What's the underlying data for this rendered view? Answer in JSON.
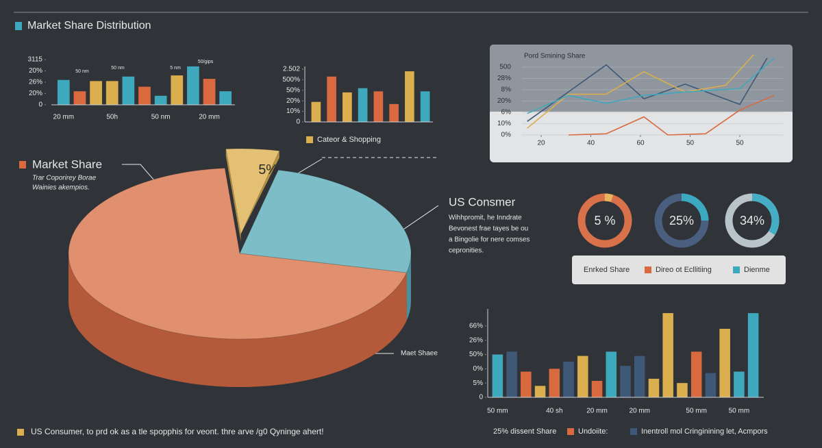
{
  "title": "Market Share Distribution",
  "chart_data": [
    {
      "type": "bar",
      "categories": [
        "20 mm",
        null,
        null,
        "50h",
        null,
        null,
        "50 nm",
        null,
        null,
        "20 mm",
        null
      ],
      "values": [
        22,
        12,
        21,
        21,
        25,
        16,
        8,
        26,
        34,
        23,
        12
      ],
      "colors": [
        "#3ea8bd",
        "#d9693f",
        "#dcaf4e",
        "#dcaf4e",
        "#3ea8bd",
        "#d9693f",
        "#3ea8bd",
        "#dcaf4e",
        "#3ea8bd",
        "#d9693f",
        "#3ea8bd"
      ],
      "ylim": [
        0,
        40
      ],
      "yticks": [
        0,
        {
          "value": 10,
          "label": "20%"
        },
        {
          "value": 20,
          "label": "26%"
        },
        {
          "value": 30,
          "label": "20%"
        },
        {
          "value": 40,
          "label": "3115"
        }
      ],
      "annotations": [
        "50 nm",
        "50 nm",
        "5 nm",
        "50/gips"
      ]
    },
    {
      "type": "bar",
      "values": [
        19,
        43,
        28,
        32,
        29,
        17,
        48,
        29
      ],
      "colors": [
        "#dcaf4e",
        "#d9693f",
        "#dcaf4e",
        "#3ea8bd",
        "#d9693f",
        "#d9693f",
        "#dcaf4e",
        "#3ea8bd"
      ],
      "ylim": [
        0,
        50
      ],
      "yticks": [
        0,
        {
          "value": 10,
          "label": "10%"
        },
        {
          "value": 20,
          "label": "20%"
        },
        {
          "value": 30,
          "label": "50%"
        },
        {
          "value": 40,
          "label": "500%"
        },
        {
          "value": 50,
          "label": "2.502"
        }
      ],
      "legend": [
        {
          "name": "Cateor & Shopping",
          "color": "#dcaf4e"
        }
      ]
    },
    {
      "type": "line",
      "title": "Pord Smining Share",
      "xlim": [
        5,
        58
      ],
      "xticks": [
        {
          "value": 10,
          "label": "20"
        },
        {
          "value": 20,
          "label": "40"
        },
        {
          "value": 30,
          "label": "60"
        },
        {
          "value": 40,
          "label": "50"
        },
        {
          "value": 50,
          "label": "50"
        }
      ],
      "ylim": [
        0,
        7.5
      ],
      "yticks": [
        {
          "value": 0,
          "label": "0%"
        },
        {
          "value": 1,
          "label": "10%"
        },
        {
          "value": 2,
          "label": "6%"
        },
        {
          "value": 3,
          "label": "20%"
        },
        {
          "value": 4,
          "label": "8%"
        },
        {
          "value": 5,
          "label": "28%"
        },
        {
          "value": 6,
          "label": "500"
        }
      ],
      "series": [
        {
          "color": "#3e5877",
          "x": [
            7.2,
            23.1,
            30.7,
            39,
            50,
            55.5
          ],
          "values": [
            1.2,
            6.2,
            3.2,
            4.5,
            2.7,
            6.8
          ]
        },
        {
          "color": "#dcaf4e",
          "x": [
            7.2,
            15.5,
            23.1,
            30.7,
            39,
            47.2,
            52.8
          ],
          "values": [
            0.6,
            3.6,
            3.6,
            5.6,
            3.8,
            4.4,
            7.1
          ]
        },
        {
          "color": "#d9693f",
          "x": [
            15.5,
            23.1,
            30.7,
            35.5,
            43.1,
            50,
            56.9
          ],
          "values": [
            0,
            0.1,
            1.6,
            0,
            0.1,
            2.2,
            3.5
          ]
        },
        {
          "color": "#3ea8bd",
          "x": [
            7.2,
            15.5,
            23.1,
            30.7,
            39,
            50,
            56.9
          ],
          "values": [
            1.9,
            3.5,
            2.8,
            3.5,
            3.8,
            4.1,
            6.8
          ]
        }
      ]
    },
    {
      "type": "pie",
      "values": [
        5,
        25,
        70
      ],
      "value_labels": [
        "5%",
        null,
        null
      ],
      "colors": [
        "#e3c074",
        "#7cbdc8",
        "#e0906f"
      ],
      "side_colors": [
        "#b8943f",
        "#4b8f9c",
        "#b45a3a"
      ],
      "heading": "Market Share",
      "subtitle": [
        "Trar Coporirey Borae",
        "Wainies akempios."
      ],
      "callout_title": "US Consmer",
      "callout_text": [
        "Wihhpromit, he Inndrate",
        "Bevonest frae tayes be ou",
        "a Bingolie for nere comses",
        "cepronities."
      ],
      "label": "Maet Shaee"
    },
    {
      "type": "doughnut",
      "values": [
        5,
        25,
        34
      ],
      "value_labels": [
        "5 %",
        "25%",
        "34%"
      ],
      "colors": [
        "#e8b45c",
        "#3ba9bf",
        "#46aec4"
      ],
      "track_colors": [
        "#d9714a",
        "#4a5f80",
        "#b8c3ca"
      ],
      "legend": [
        {
          "name": "Enrked Share"
        },
        {
          "name": "Direo ot Ecllitiing",
          "color": "#d9693f"
        },
        {
          "name": "Dienme",
          "color": "#3ea8bd"
        }
      ]
    },
    {
      "type": "bar",
      "categories": [
        "50 mm",
        null,
        null,
        null,
        "40 sh",
        null,
        null,
        "20 mm",
        null,
        null,
        "20 mm",
        null,
        null,
        null,
        "50 mm",
        null,
        null,
        "50 mm",
        null
      ],
      "values": [
        3.0,
        3.2,
        1.8,
        0.8,
        2.0,
        2.5,
        2.9,
        1.15,
        3.2,
        2.2,
        2.9,
        1.3,
        5.9,
        1.0,
        3.2,
        1.7,
        4.8,
        1.8,
        5.9
      ],
      "colors": [
        "#3ea8bd",
        "#3e5877",
        "#d9693f",
        "#dcaf4e",
        "#d9693f",
        "#3e5877",
        "#dcaf4e",
        "#d9693f",
        "#3ea8bd",
        "#3e5877",
        "#3e5877",
        "#dcaf4e",
        "#dcaf4e",
        "#dcaf4e",
        "#d9693f",
        "#3e5877",
        "#dcaf4e",
        "#3ea8bd",
        "#3ea8bd"
      ],
      "ylim": [
        0,
        6
      ],
      "yticks": [
        0,
        {
          "value": 1,
          "label": "5%"
        },
        {
          "value": 2,
          "label": "0%"
        },
        {
          "value": 3,
          "label": "50%"
        },
        {
          "value": 4,
          "label": "26%"
        },
        {
          "value": 5,
          "label": "66%"
        }
      ],
      "legend": [
        {
          "name": "25% dissent Share"
        },
        {
          "name": "Undoiite:",
          "color": "#d9693f"
        },
        {
          "name": "Inentroll mol Cringinining let, Acmpors",
          "color": "#3e5877"
        }
      ]
    }
  ],
  "footer": "US Consumer, to prd ok as a tle spopphis for veont. thre arve /g0 Qyninge ahert!"
}
